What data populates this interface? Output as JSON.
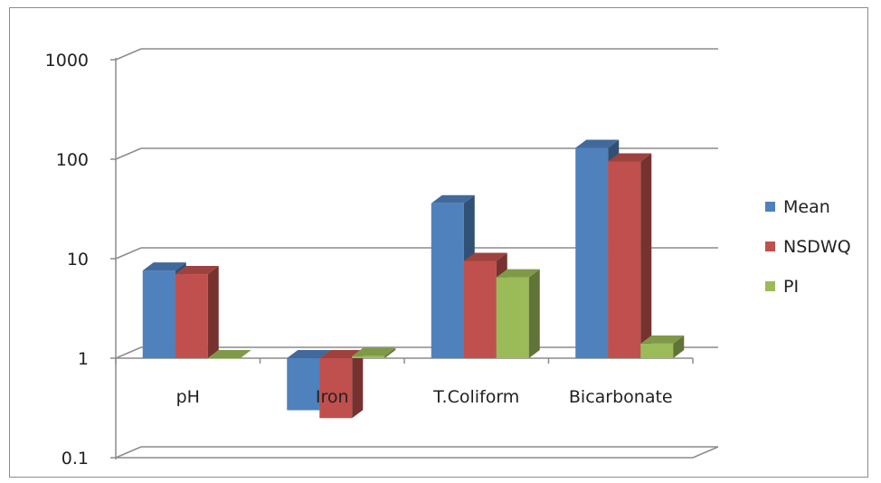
{
  "chart_data": {
    "type": "bar",
    "style": "3d-clustered-column",
    "y_scale": "log",
    "ylim": [
      0.1,
      1000
    ],
    "yticks": [
      0.1,
      1,
      10,
      100,
      1000
    ],
    "ytick_labels": [
      "0.1",
      "1",
      "10",
      "100",
      "1000"
    ],
    "grid": true,
    "legend_position": "right",
    "title": "",
    "xlabel": "",
    "ylabel": "",
    "categories": [
      "pH",
      "Iron",
      "T.Coliform",
      "Bicarbonate"
    ],
    "series": [
      {
        "name": "Mean",
        "color": "#4f81bd",
        "values": [
          7.6,
          0.3,
          36,
          130
        ]
      },
      {
        "name": "NSDWQ",
        "color": "#c0504d",
        "values": [
          7,
          0.25,
          9.5,
          95
        ]
      },
      {
        "name": "PI",
        "color": "#9bbb59",
        "values": [
          1.0,
          1.05,
          6.5,
          1.4
        ]
      }
    ]
  }
}
